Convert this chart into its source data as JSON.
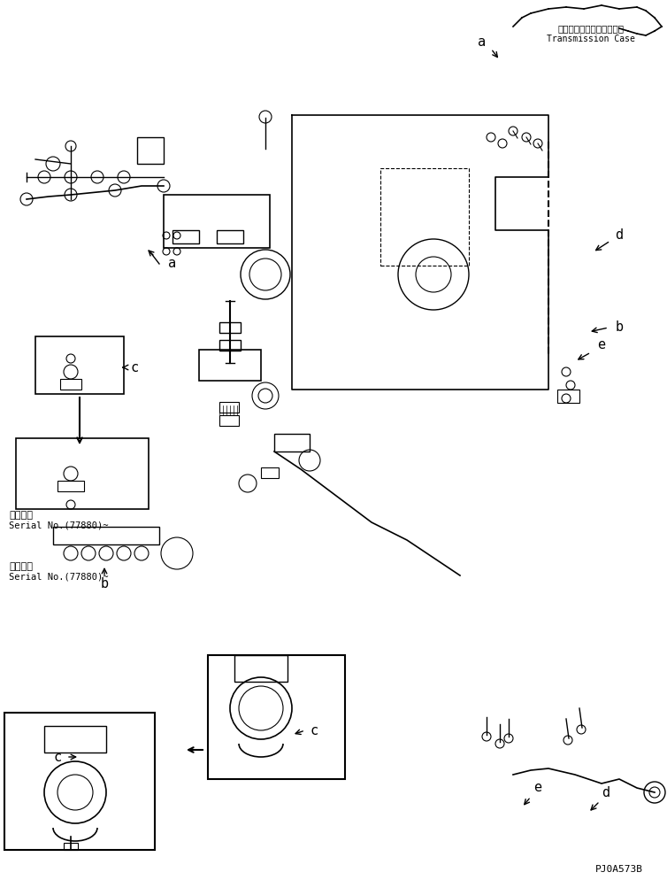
{
  "title": "",
  "background_color": "#ffffff",
  "line_color": "#000000",
  "text_color": "#000000",
  "transmission_case_label_jp": "トランスミッションケース",
  "transmission_case_label_en": "Transmission Case",
  "serial_label_1_jp": "適用号機",
  "serial_label_1_en": "Serial No.(77880)~",
  "serial_label_2_jp": "適用号機",
  "serial_label_2_en": "Serial No.(77880)~",
  "part_code": "PJ0A573B",
  "figsize": [
    7.54,
    9.94
  ],
  "dpi": 100
}
